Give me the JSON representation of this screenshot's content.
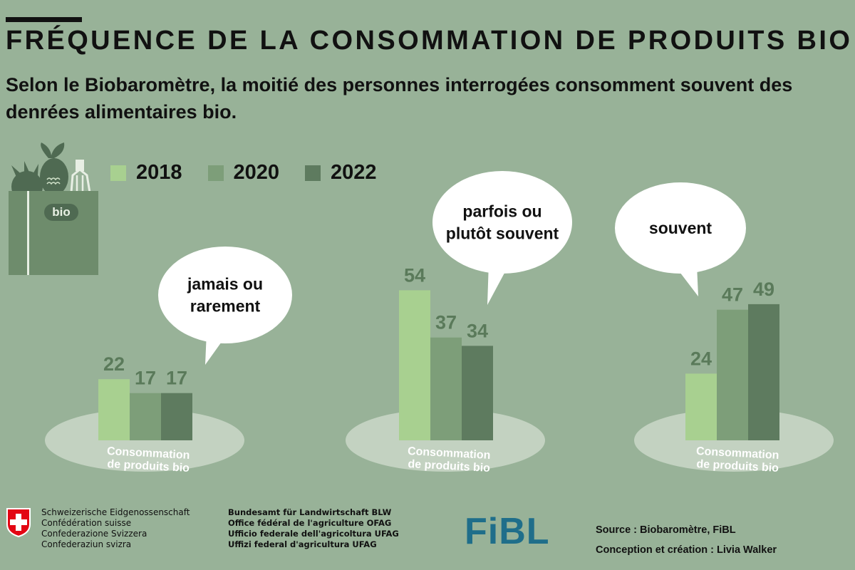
{
  "page": {
    "title": "FRÉQUENCE DE LA CONSOMMATION DE PRODUITS BIO",
    "subtitle": "Selon le Biobaromètre, la moitié des personnes interrogées consomment souvent des denrées alimentaires bio.",
    "bag_label": "bio"
  },
  "chart_data": {
    "type": "bar",
    "series": [
      {
        "name": "2018",
        "color": "#a8d090"
      },
      {
        "name": "2020",
        "color": "#7d9e79"
      },
      {
        "name": "2022",
        "color": "#5e7b5f"
      }
    ],
    "groups": [
      {
        "bubble_lines": [
          "jamais ou",
          "rarement"
        ],
        "values": [
          22,
          17,
          17
        ],
        "base_label_lines": [
          "Consommation",
          "de produits bio"
        ]
      },
      {
        "bubble_lines": [
          "parfois ou",
          "plutôt souvent"
        ],
        "values": [
          54,
          37,
          34
        ],
        "base_label_lines": [
          "Consommation",
          "de produits bio"
        ]
      },
      {
        "bubble_lines": [
          "souvent"
        ],
        "values": [
          24,
          47,
          49
        ],
        "base_label_lines": [
          "Consommation",
          "de produits bio"
        ]
      }
    ]
  },
  "footer": {
    "federal_lines": [
      "Schweizerische Eidgenossenschaft",
      "Confédération suisse",
      "Confederazione Svizzera",
      "Confederaziun svizra"
    ],
    "office_lines": [
      "Bundesamt für Landwirtschaft BLW",
      "Office fédéral de l'agriculture OFAG",
      "Ufficio federale dell'agricoltura UFAG",
      "Uffizi federal d'agricultura UFAG"
    ],
    "logo_text": "FiBL",
    "source_line": "Source :  Biobaromètre, FiBL",
    "credit_line": "Conception et création :  Livia Walker"
  }
}
